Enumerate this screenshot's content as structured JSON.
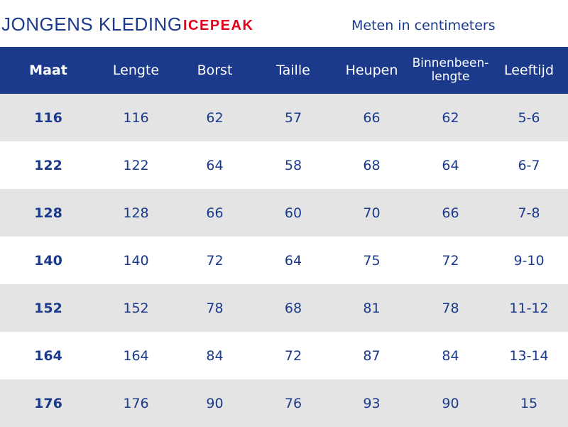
{
  "header": {
    "title": "JONGENS KLEDING",
    "brand": "ICEPEAK",
    "units_note": "Meten in centimeters"
  },
  "table": {
    "columns": [
      "Maat",
      "Lengte",
      "Borst",
      "Taille",
      "Heupen",
      "Binnenbeen-lengte",
      "Leeftijd"
    ],
    "rows": [
      [
        "116",
        "116",
        "62",
        "57",
        "66",
        "62",
        "5-6"
      ],
      [
        "122",
        "122",
        "64",
        "58",
        "68",
        "64",
        "6-7"
      ],
      [
        "128",
        "128",
        "66",
        "60",
        "70",
        "66",
        "7-8"
      ],
      [
        "140",
        "140",
        "72",
        "64",
        "75",
        "72",
        "9-10"
      ],
      [
        "152",
        "152",
        "78",
        "68",
        "81",
        "78",
        "11-12"
      ],
      [
        "164",
        "164",
        "84",
        "72",
        "87",
        "84",
        "13-14"
      ],
      [
        "176",
        "176",
        "90",
        "76",
        "93",
        "90",
        "15"
      ]
    ]
  },
  "colors": {
    "header_blue": "#1b3a8c",
    "brand_red": "#e2001a",
    "row_stripe": "#e4e4e4",
    "row_plain": "#ffffff"
  }
}
